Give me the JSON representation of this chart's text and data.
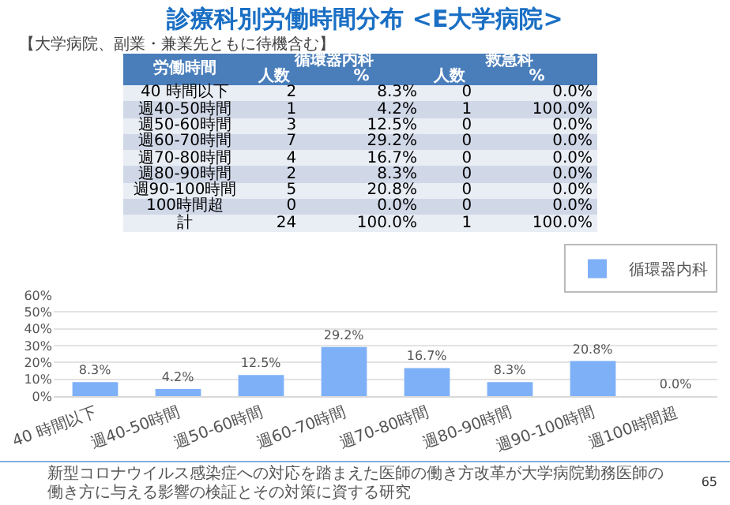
{
  "chart_data": [
    {
      "type": "heatmap",
      "title": "診療科別労働時間分布 <E大学病院>",
      "subtitle": "【大学病院、副業・兼業先ともに待機含む】",
      "ylabel": "労働時間",
      "annotations": [
        "循環器内科",
        "救急科"
      ],
      "categories": [
        "人数",
        "%",
        "人数",
        "%"
      ],
      "y_categories": [
        "40 時間以下",
        "週40-50時間",
        "週50-60時間",
        "週60-70時間",
        "週70-80時間",
        "週80-90時間",
        "週90-100時間",
        "100時間超",
        "計"
      ],
      "cells": [
        [
          2,
          8.3,
          0,
          0.0
        ],
        [
          1,
          4.2,
          1,
          100.0
        ],
        [
          3,
          12.5,
          0,
          0.0
        ],
        [
          7,
          29.2,
          0,
          0.0
        ],
        [
          4,
          16.7,
          0,
          0.0
        ],
        [
          2,
          8.3,
          0,
          0.0
        ],
        [
          5,
          20.8,
          0,
          0.0
        ],
        [
          0,
          0.0,
          0,
          0.0
        ],
        [
          24,
          100.0,
          1,
          100.0
        ]
      ],
      "cell_labels": [
        [
          "2",
          "8.3%",
          "0",
          "0.0%"
        ],
        [
          "1",
          "4.2%",
          "1",
          "100.0%"
        ],
        [
          "3",
          "12.5%",
          "0",
          "0.0%"
        ],
        [
          "7",
          "29.2%",
          "0",
          "0.0%"
        ],
        [
          "4",
          "16.7%",
          "0",
          "0.0%"
        ],
        [
          "2",
          "8.3%",
          "0",
          "0.0%"
        ],
        [
          "5",
          "20.8%",
          "0",
          "0.0%"
        ],
        [
          "0",
          "0.0%",
          "0",
          "0.0%"
        ],
        [
          "24",
          "100.0%",
          "1",
          "100.0%"
        ]
      ]
    },
    {
      "type": "bar",
      "categories": [
        "40 時間以下",
        "週40-50時間",
        "週50-60時間",
        "週60-70時間",
        "週70-80時間",
        "週80-90時間",
        "週90-100時間",
        "週100時間超"
      ],
      "series": [
        {
          "name": "循環器内科",
          "color": "#7eb0f7",
          "values": [
            8.3,
            4.2,
            12.5,
            29.2,
            16.7,
            8.3,
            20.8,
            0.0
          ],
          "value_labels": [
            "8.3%",
            "4.2%",
            "12.5%",
            "29.2%",
            "16.7%",
            "8.3%",
            "20.8%",
            "0.0%"
          ]
        }
      ],
      "ylim": [
        0,
        60
      ],
      "yticks": [
        {
          "value": 0,
          "label": "0%"
        },
        {
          "value": 10,
          "label": "10%"
        },
        {
          "value": 20,
          "label": "20%"
        },
        {
          "value": 30,
          "label": "30%"
        },
        {
          "value": 40,
          "label": "40%"
        },
        {
          "value": 50,
          "label": "50%"
        },
        {
          "value": 60,
          "label": "60%"
        }
      ],
      "grid": "y",
      "legend": "top right",
      "annotations": [
        "新型コロナウイルス感染症への対応を踏まえた医師の働き方改革が大学病院勤務医師の働き方に与える影響の検証とその対策に資する研究",
        "65"
      ]
    }
  ]
}
